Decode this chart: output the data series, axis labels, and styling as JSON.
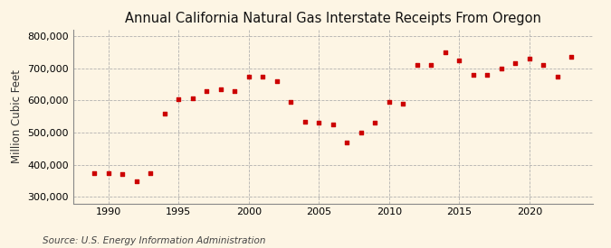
{
  "title": "Annual California Natural Gas Interstate Receipts From Oregon",
  "ylabel": "Million Cubic Feet",
  "source": "Source: U.S. Energy Information Administration",
  "background_color": "#fdf5e4",
  "marker_color": "#cc0000",
  "years": [
    1989,
    1990,
    1991,
    1992,
    1993,
    1994,
    1995,
    1996,
    1997,
    1998,
    1999,
    2000,
    2001,
    2002,
    2003,
    2004,
    2005,
    2006,
    2007,
    2008,
    2009,
    2010,
    2011,
    2012,
    2013,
    2014,
    2015,
    2016,
    2017,
    2018,
    2019,
    2020,
    2021,
    2022,
    2023
  ],
  "values": [
    375000,
    375000,
    370000,
    350000,
    375000,
    560000,
    605000,
    607000,
    630000,
    635000,
    630000,
    675000,
    675000,
    660000,
    595000,
    535000,
    530000,
    525000,
    470000,
    500000,
    530000,
    595000,
    590000,
    710000,
    710000,
    750000,
    725000,
    680000,
    680000,
    700000,
    715000,
    730000,
    710000,
    675000,
    735000
  ],
  "ylim": [
    280000,
    820000
  ],
  "xlim": [
    1987.5,
    2024.5
  ],
  "yticks": [
    300000,
    400000,
    500000,
    600000,
    700000,
    800000
  ],
  "xticks": [
    1990,
    1995,
    2000,
    2005,
    2010,
    2015,
    2020
  ],
  "grid_color": "#aaaaaa",
  "title_fontsize": 10.5,
  "axis_fontsize": 8.5,
  "tick_fontsize": 8,
  "source_fontsize": 7.5
}
